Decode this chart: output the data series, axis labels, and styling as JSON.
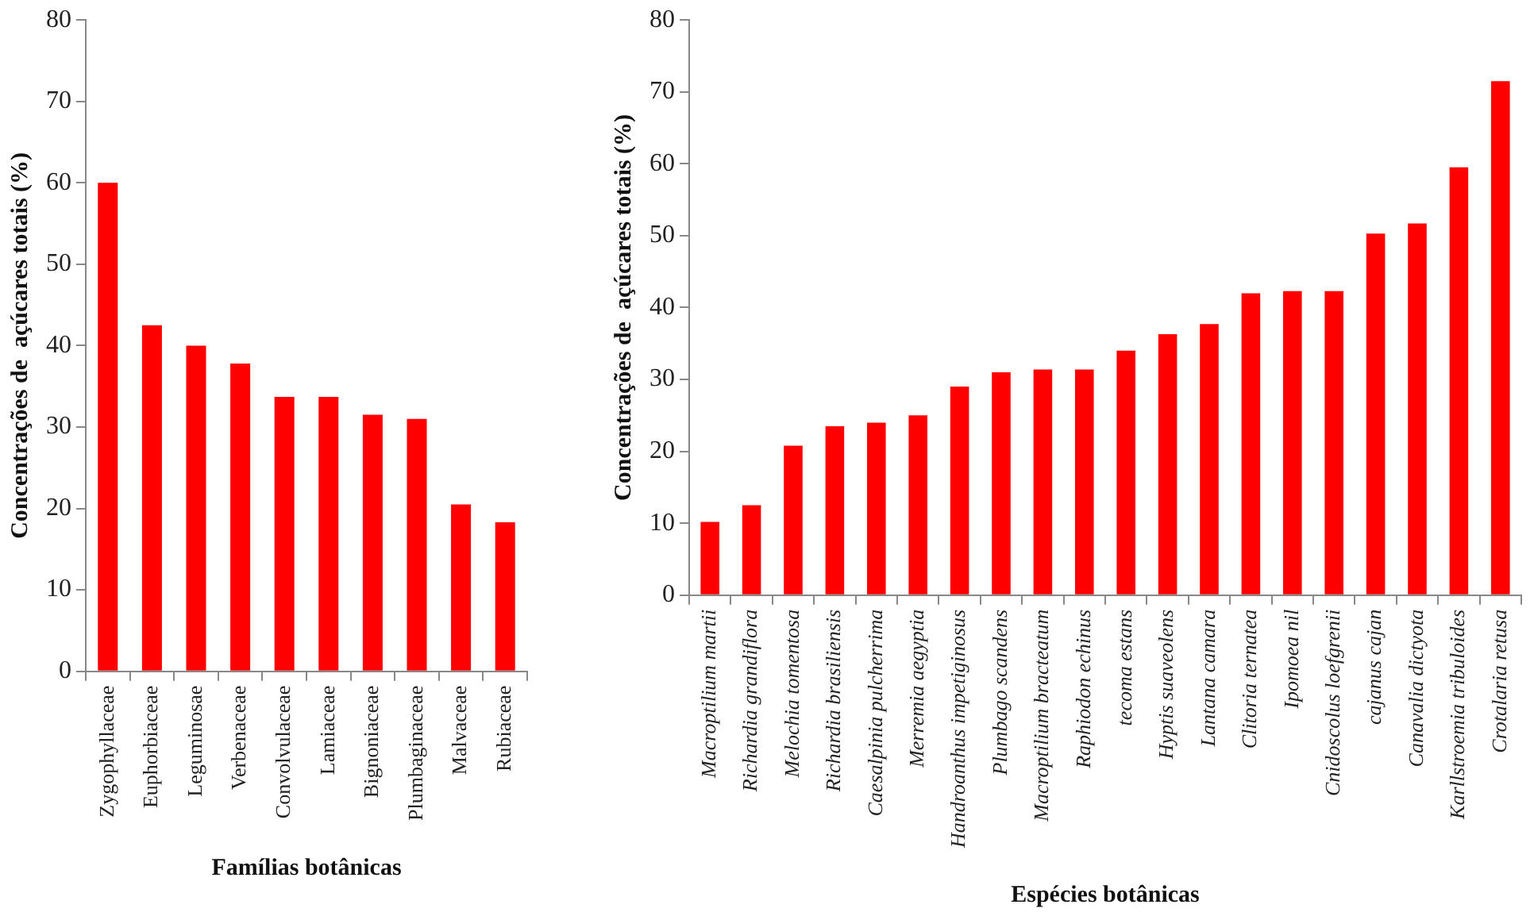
{
  "chart_data": [
    {
      "type": "bar",
      "xlabel": "Famílias botânicas",
      "ylabel": "Concentrações de  açúcares totais (%)",
      "categories": [
        "Zygophyllaceae",
        "Euphorbiaceae",
        "Leguminosae",
        "Verbenaceae",
        "Convolvulaceae",
        "Lamiaceae",
        "Bignoniaceae",
        "Plumbaginaceae",
        "Malvaceae",
        "Rubiaceae"
      ],
      "values": [
        60,
        42.5,
        40,
        37.8,
        33.7,
        33.7,
        31.5,
        31,
        20.5,
        18.3
      ],
      "color": "#ff0000",
      "ylim": [
        0,
        80
      ],
      "yticks": [
        0,
        10,
        20,
        30,
        40,
        50,
        60,
        70,
        80
      ],
      "grid": false,
      "legend": false
    },
    {
      "type": "bar",
      "xlabel": "Espécies botânicas",
      "ylabel": "Concentrações de  açúcares totais (%)",
      "categories": [
        "Macroptilium martii",
        "Richardia grandiflora",
        "Melochia tomentosa",
        "Richardia brasiliensis",
        "Caesalpinia pulcherrima",
        "Merremia aegyptia",
        "Handroanthus impetiginosus",
        "Plumbago scandens",
        "Macroptilium bracteatum",
        "Raphiodon echinus",
        "tecoma estans",
        "Hyptis suaveolens",
        "Lantana camara",
        "Clitoria ternatea",
        "Ipomoea nil",
        "Cnidoscolus loefgrenii",
        "cajanus cajan",
        "Canavalia dictyota",
        "Karllstroemia tribuloides",
        "Crotalaria retusa"
      ],
      "values": [
        10.2,
        12.5,
        20.8,
        23.5,
        24,
        25,
        29,
        31,
        31.4,
        31.4,
        34,
        36.3,
        37.7,
        42,
        42.3,
        42.3,
        50.3,
        51.7,
        59.5,
        71.5
      ],
      "color": "#ff0000",
      "ylim": [
        0,
        80
      ],
      "yticks": [
        0,
        10,
        20,
        30,
        40,
        50,
        60,
        70,
        80
      ],
      "grid": false,
      "legend": false
    }
  ]
}
